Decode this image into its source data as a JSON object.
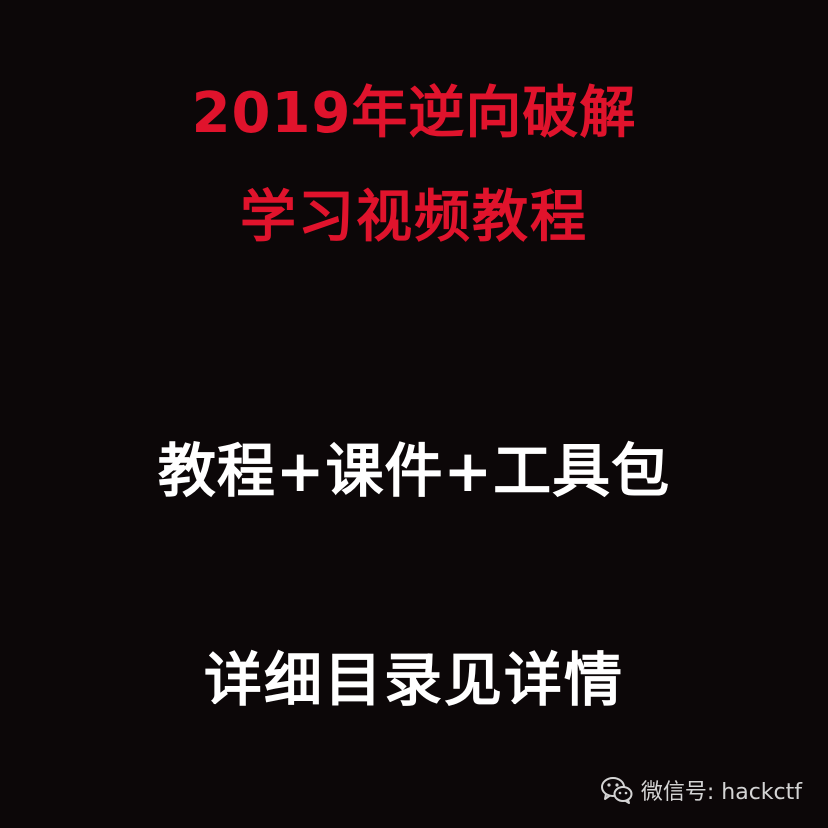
{
  "title_line_1": "2019年逆向破解",
  "title_line_2": "学习视频教程",
  "subtitle": "教程+课件+工具包",
  "note": "详细目录见详情",
  "watermark": {
    "text": "微信号: hackctf",
    "icon": "wechat-icon"
  },
  "colors": {
    "background": "#0c0708",
    "accent": "#e0132c",
    "text": "#ffffff"
  }
}
